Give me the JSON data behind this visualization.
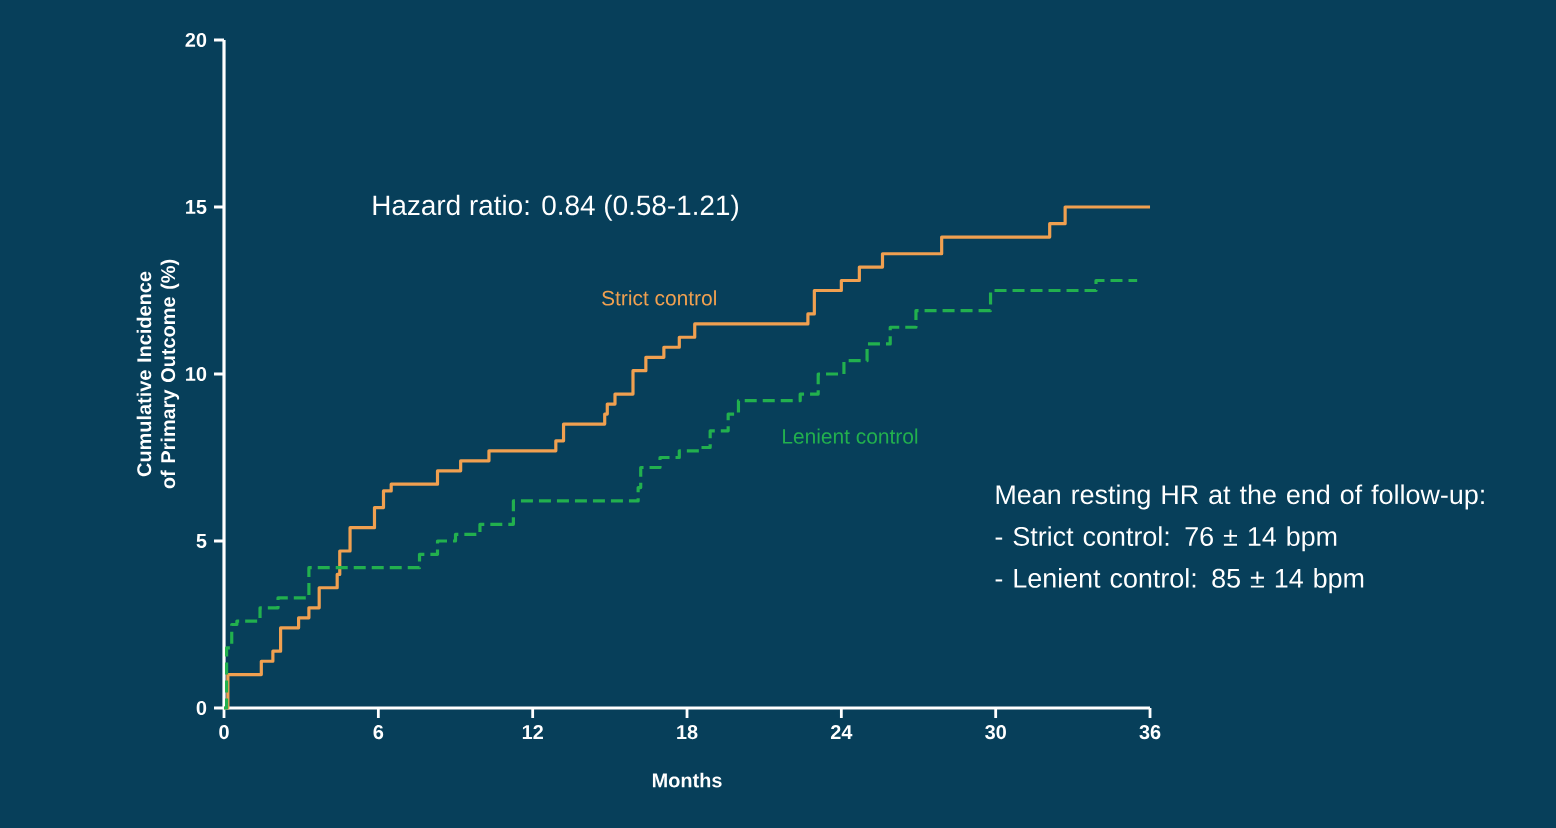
{
  "chart_data": {
    "type": "step",
    "xlabel": "Months",
    "ylabel": "Cumulative Incidence of Primary Outcome (%)",
    "xlim": [
      0,
      36
    ],
    "xticks": [
      0,
      6,
      12,
      18,
      24,
      30,
      36
    ],
    "ylim": [
      0,
      20
    ],
    "yticks": [
      0,
      5,
      10,
      15,
      20
    ],
    "grid": false,
    "marker": "none",
    "annotations": [
      "Hazard ratio: 0.84 (0.58-1.21)",
      "Mean resting HR at the end of follow-up:",
      " - Strict control: 76 ± 14 bpm",
      " - Lenient control: 85 ± 14 bpm"
    ],
    "series": [
      {
        "name": "Strict control",
        "color": "#f0a050",
        "line_style": "solid",
        "x": [
          0,
          0.15,
          1.45,
          1.9,
          2.2,
          2.9,
          3.3,
          3.7,
          4.4,
          4.5,
          4.9,
          5.85,
          6.2,
          6.5,
          8.3,
          9.2,
          10.3,
          12.9,
          13.2,
          14.8,
          14.9,
          15.2,
          15.9,
          16.4,
          17.1,
          17.7,
          18.3,
          22.7,
          22.95,
          24.0,
          24.7,
          25.6,
          27.9,
          32.1,
          32.7,
          36
        ],
        "values": [
          0,
          1.0,
          1.4,
          1.7,
          2.4,
          2.7,
          3.0,
          3.6,
          4.0,
          4.7,
          5.4,
          6.0,
          6.5,
          6.7,
          7.1,
          7.4,
          7.7,
          8.0,
          8.5,
          8.8,
          9.1,
          9.4,
          10.1,
          10.5,
          10.8,
          11.1,
          11.5,
          11.8,
          12.5,
          12.8,
          13.2,
          13.6,
          14.1,
          14.5,
          15.0,
          15.0
        ]
      },
      {
        "name": "Lenient control",
        "color": "#22b04e",
        "line_style": "dashed",
        "x": [
          0,
          0.1,
          0.3,
          0.5,
          1.4,
          2.1,
          3.3,
          7.6,
          8.3,
          9.0,
          9.95,
          11.25,
          16.1,
          16.2,
          16.95,
          17.7,
          18.5,
          18.9,
          19.6,
          20.0,
          22.4,
          23.1,
          24.1,
          25.0,
          25.9,
          26.9,
          29.8,
          33.9,
          35.5
        ],
        "values": [
          0,
          1.8,
          2.5,
          2.6,
          3.0,
          3.3,
          4.2,
          4.6,
          5.0,
          5.2,
          5.5,
          6.2,
          6.6,
          7.2,
          7.5,
          7.7,
          7.8,
          8.3,
          8.8,
          9.2,
          9.4,
          10.0,
          10.4,
          10.9,
          11.4,
          11.9,
          12.5,
          12.8,
          12.8
        ]
      }
    ]
  }
}
